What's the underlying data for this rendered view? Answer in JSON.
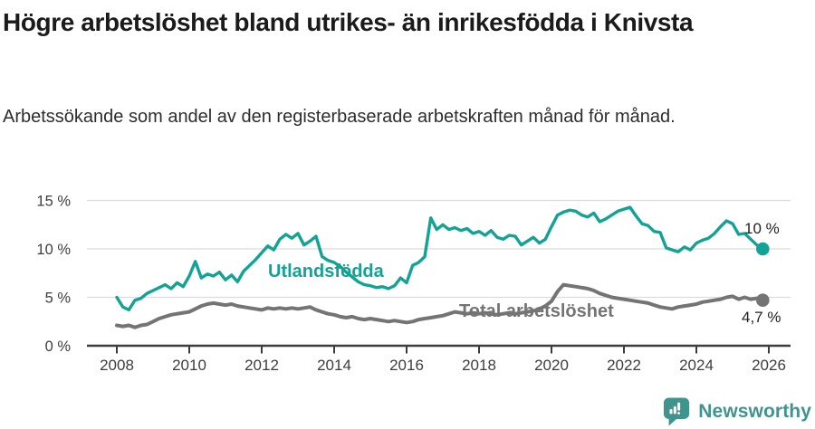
{
  "header": {
    "title": "Högre arbetslöshet bland utrikes- än inrikesfödda i Knivsta",
    "subtitle": "Arbetssökande som andel av den registerbaserade arbetskraften månad för månad."
  },
  "chart_data": {
    "type": "line",
    "title": "Högre arbetslöshet bland utrikes- än inrikesfödda i Knivsta",
    "subtitle": "Arbetssökande som andel av den registerbaserade arbetskraften månad för månad.",
    "x_start": 2008,
    "points_per_year": 6,
    "x_ticks": [
      2008,
      2010,
      2012,
      2014,
      2016,
      2018,
      2020,
      2022,
      2024,
      2026
    ],
    "y_ticks": [
      0,
      5,
      10,
      15
    ],
    "y_tick_labels": [
      "0 %",
      "5 %",
      "10 %",
      "15 %"
    ],
    "ylim": [
      0,
      16
    ],
    "grid": "horizontal",
    "grid_color": "#dcdcdc",
    "axis_color": "#3d3d3d",
    "series": [
      {
        "name": "Utlandsfödda",
        "color": "#12a296",
        "end_label": "10 %",
        "end_value": 10,
        "values": [
          5.0,
          4.0,
          3.7,
          4.7,
          4.9,
          5.4,
          5.7,
          6.0,
          6.3,
          5.9,
          6.5,
          6.1,
          7.2,
          8.7,
          7.0,
          7.4,
          7.2,
          7.6,
          6.8,
          7.3,
          6.6,
          7.7,
          8.3,
          8.9,
          9.6,
          10.3,
          9.9,
          11.0,
          11.5,
          11.1,
          11.6,
          10.4,
          10.8,
          11.3,
          9.2,
          8.8,
          8.6,
          8.2,
          7.6,
          7.1,
          6.6,
          6.3,
          6.2,
          6.0,
          6.1,
          5.9,
          6.2,
          7.0,
          6.5,
          8.3,
          8.6,
          9.2,
          13.2,
          12.0,
          12.5,
          12.0,
          12.2,
          11.9,
          12.1,
          11.6,
          11.8,
          11.4,
          11.9,
          11.2,
          11.0,
          11.4,
          11.3,
          10.4,
          10.8,
          11.2,
          10.6,
          11.0,
          12.3,
          13.5,
          13.8,
          14.0,
          13.9,
          13.5,
          13.3,
          13.7,
          12.8,
          13.1,
          13.5,
          13.9,
          14.1,
          14.3,
          13.4,
          12.6,
          12.4,
          11.8,
          11.7,
          10.1,
          9.9,
          9.7,
          10.2,
          9.9,
          10.6,
          10.9,
          11.1,
          11.6,
          12.3,
          12.9,
          12.6,
          11.5,
          11.6,
          11.0,
          10.4,
          10.0
        ]
      },
      {
        "name": "Total arbetslöshet",
        "color": "#747474",
        "end_label": "4,7 %",
        "end_value": 4.7,
        "values": [
          2.1,
          2.0,
          2.1,
          1.9,
          2.1,
          2.2,
          2.5,
          2.8,
          3.0,
          3.2,
          3.3,
          3.4,
          3.5,
          3.8,
          4.1,
          4.3,
          4.4,
          4.3,
          4.2,
          4.3,
          4.1,
          4.0,
          3.9,
          3.8,
          3.7,
          3.9,
          3.8,
          3.9,
          3.8,
          3.9,
          3.8,
          3.9,
          4.0,
          3.7,
          3.5,
          3.3,
          3.2,
          3.0,
          2.9,
          3.0,
          2.8,
          2.7,
          2.8,
          2.7,
          2.6,
          2.5,
          2.6,
          2.5,
          2.4,
          2.5,
          2.7,
          2.8,
          2.9,
          3.0,
          3.1,
          3.3,
          3.5,
          3.4,
          3.3,
          3.4,
          3.3,
          3.4,
          3.3,
          3.2,
          3.3,
          3.4,
          3.3,
          3.4,
          3.5,
          3.6,
          3.8,
          4.1,
          4.6,
          5.6,
          6.3,
          6.2,
          6.1,
          6.0,
          5.9,
          5.7,
          5.4,
          5.2,
          5.0,
          4.9,
          4.8,
          4.7,
          4.6,
          4.5,
          4.4,
          4.2,
          4.0,
          3.9,
          3.8,
          4.0,
          4.1,
          4.2,
          4.3,
          4.5,
          4.6,
          4.7,
          4.8,
          5.0,
          5.1,
          4.8,
          5.0,
          4.8,
          4.9,
          4.7
        ]
      }
    ],
    "legend_position": "inline-labels"
  },
  "footer": {
    "brand": "Newsworthy",
    "logo_color": "#3f948e"
  }
}
